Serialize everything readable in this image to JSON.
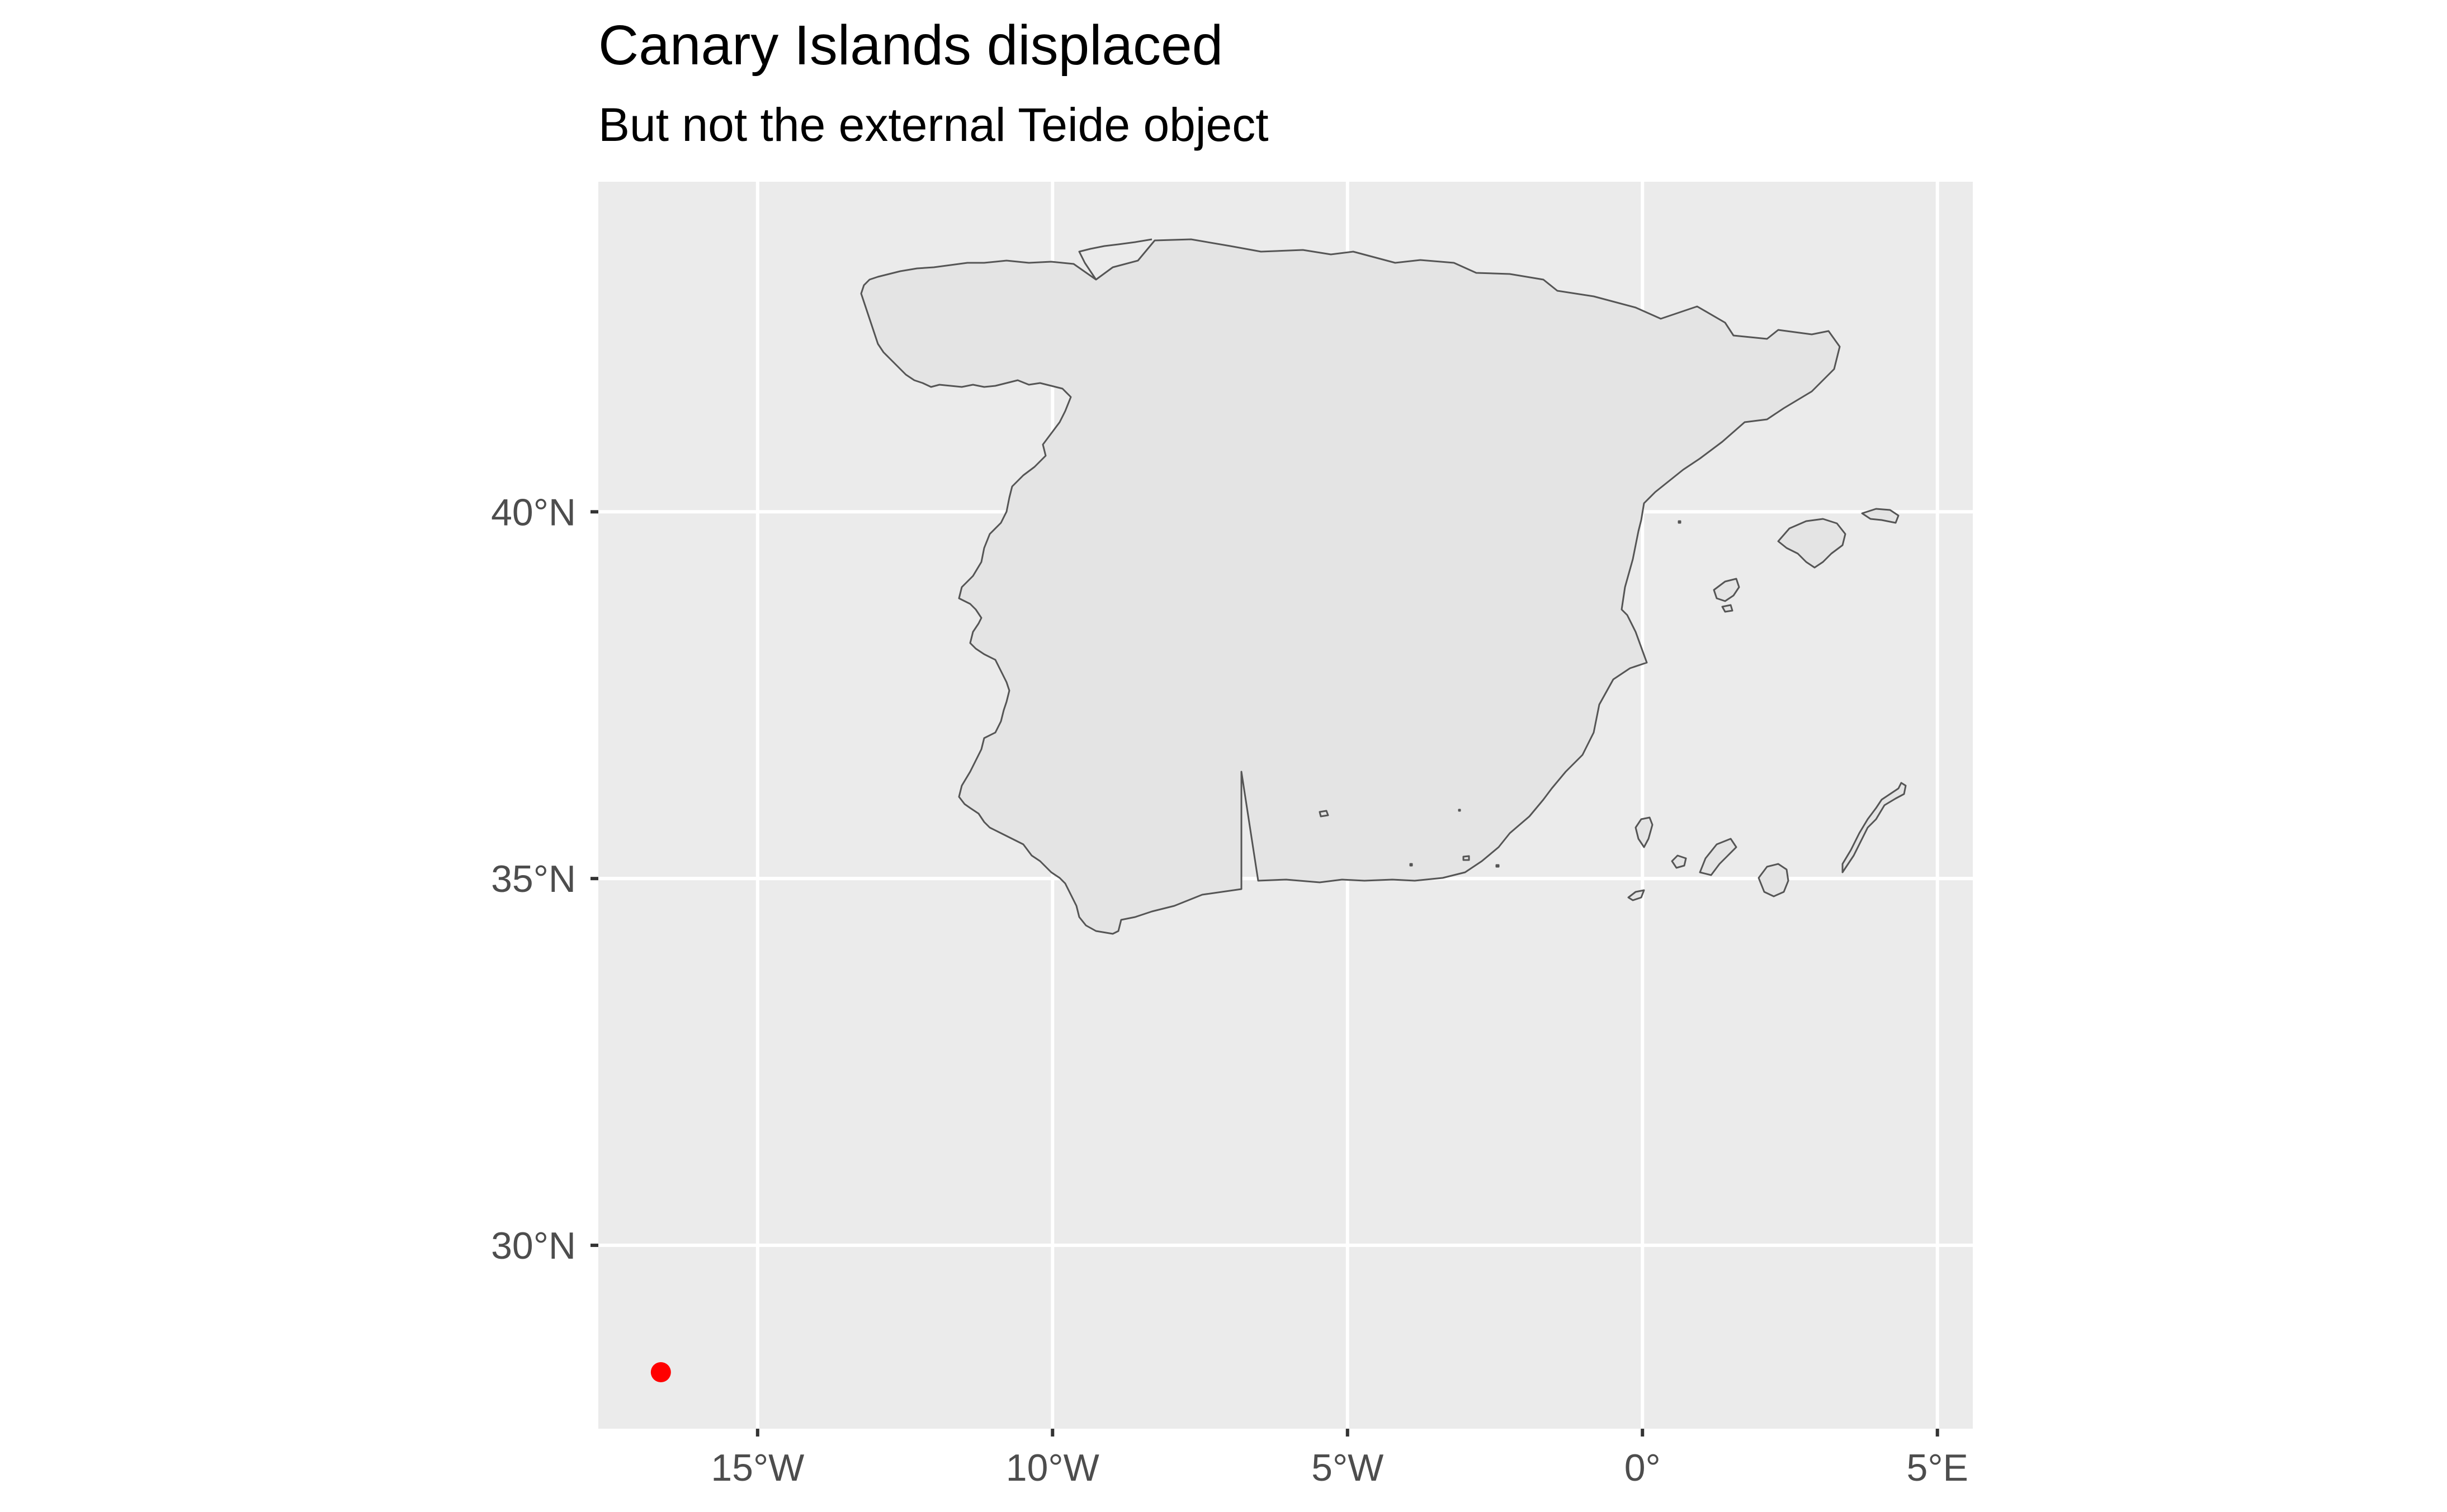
{
  "title": "Canary Islands displaced",
  "subtitle": "But not the external Teide object",
  "colors": {
    "panel_background": "#ebebeb",
    "grid_line": "#ffffff",
    "land_fill": "#e4e4e4",
    "land_outline": "#555555",
    "point": "#ff0000",
    "axis_text": "#4d4d4d",
    "tick_mark": "#333333"
  },
  "axes": {
    "x_ticks": [
      {
        "value": -15,
        "label": "15°W"
      },
      {
        "value": -10,
        "label": "10°W"
      },
      {
        "value": -5,
        "label": "5°W"
      },
      {
        "value": 0,
        "label": "0°"
      },
      {
        "value": 5,
        "label": "5°E"
      }
    ],
    "y_ticks": [
      {
        "value": 30,
        "label": "30°N"
      },
      {
        "value": 35,
        "label": "35°N"
      },
      {
        "value": 40,
        "label": "40°N"
      }
    ]
  },
  "chart_data": {
    "type": "scatter",
    "map": true,
    "xlim": [
      -17.7,
      5.6
    ],
    "ylim": [
      27.5,
      44.5
    ],
    "grid": true,
    "features": [
      "Spain mainland",
      "Balearic Islands",
      "Canary Islands (displaced near 35.5°N)"
    ],
    "points": [
      {
        "lon": -16.64,
        "lat": 28.27,
        "color": "#ff0000"
      }
    ]
  }
}
